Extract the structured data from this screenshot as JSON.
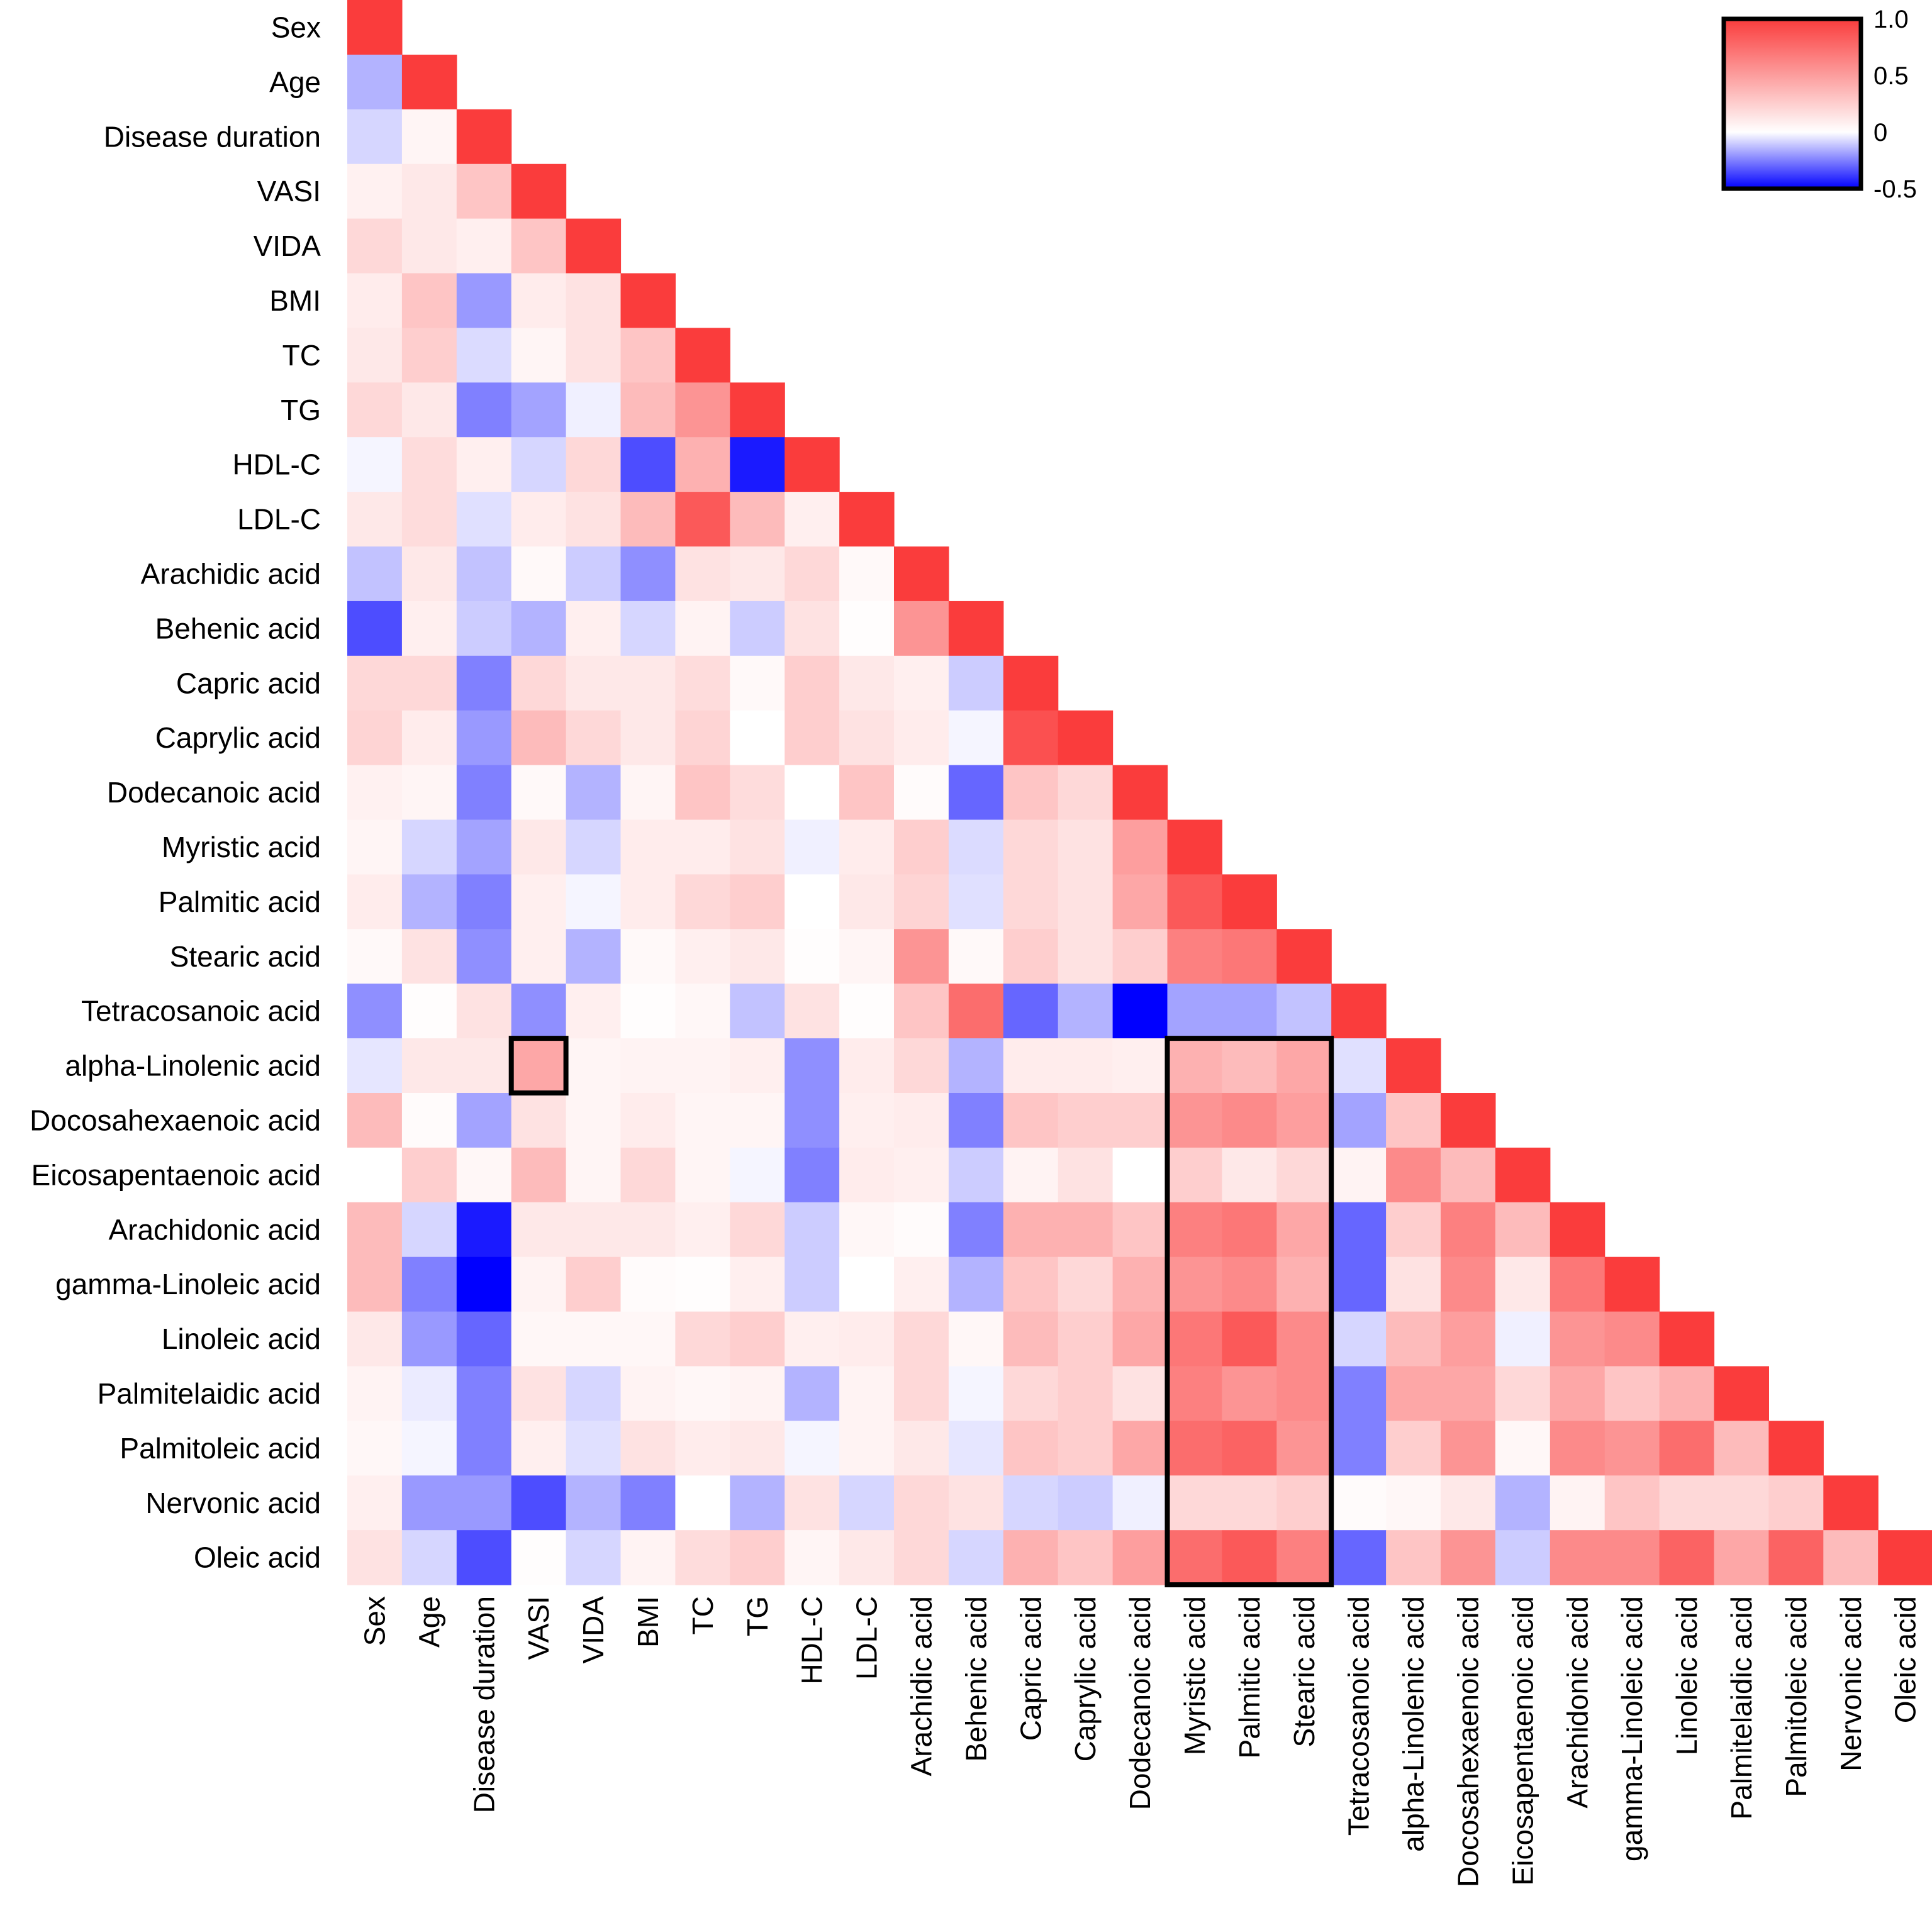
{
  "chart_data": {
    "type": "heatmap",
    "title": "",
    "variables": [
      "Sex",
      "Age",
      "Disease duration",
      "VASI",
      "VIDA",
      "BMI",
      "TC",
      "TG",
      "HDL-C",
      "LDL-C",
      "Arachidic acid",
      "Behenic acid",
      "Capric acid",
      "Caprylic acid",
      "Dodecanoic acid",
      "Myristic acid",
      "Palmitic acid",
      "Stearic acid",
      "Tetracosanoic acid",
      "alpha-Linolenic acid",
      "Docosahexaenoic acid",
      "Eicosapentaenoic acid",
      "Arachidonic acid",
      "gamma-Linoleic acid",
      "Linoleic acid",
      "Palmitelaidic acid",
      "Palmitoleic acid",
      "Nervonic acid",
      "Oleic acid"
    ],
    "y_labels": [
      "Sex",
      "Age",
      "Disease duration ",
      "VASI",
      "VIDA",
      "BMI",
      "TC",
      "TG",
      "HDL-C",
      "LDL-C",
      "Arachidic acid",
      "Behenic acid",
      "Capric acid",
      "Caprylic acid",
      "Dodecanoic acid",
      "Myristic acid",
      "Palmitic acid",
      "Stearic acid",
      "Tetracosanoic acid",
      "alpha-Linolenic acid",
      "Docosahexaenoic acid",
      "Eicosapentaenoic acid",
      "Arachidonic acid",
      "gamma-Linoleic acid",
      "Linoleic acid",
      "Palmitelaidic acid",
      "Palmitoleic acid",
      "Nervonic acid",
      "Oleic acid"
    ],
    "matrix_lower": [
      [
        1.0
      ],
      [
        -0.15,
        1.0
      ],
      [
        -0.08,
        0.05,
        1.0
      ],
      [
        0.07,
        0.12,
        0.3,
        1.0
      ],
      [
        0.2,
        0.12,
        0.08,
        0.3,
        1.0
      ],
      [
        0.1,
        0.3,
        -0.2,
        0.1,
        0.15,
        1.0
      ],
      [
        0.12,
        0.25,
        -0.07,
        0.05,
        0.15,
        0.3,
        1.0
      ],
      [
        0.2,
        0.12,
        -0.25,
        -0.18,
        -0.03,
        0.35,
        0.55,
        1.0
      ],
      [
        -0.02,
        0.18,
        0.08,
        -0.08,
        0.2,
        -0.35,
        0.4,
        -0.45,
        1.0
      ],
      [
        0.12,
        0.18,
        -0.06,
        0.1,
        0.15,
        0.35,
        0.85,
        0.35,
        0.08,
        1.0
      ],
      [
        -0.12,
        0.12,
        -0.12,
        0.03,
        -0.1,
        -0.22,
        0.15,
        0.12,
        0.2,
        0.03,
        1.0
      ],
      [
        -0.35,
        0.08,
        -0.1,
        -0.15,
        0.08,
        -0.08,
        0.06,
        -0.1,
        0.15,
        0.01,
        0.55,
        1.0
      ],
      [
        0.2,
        0.2,
        -0.25,
        0.2,
        0.12,
        0.12,
        0.18,
        0.03,
        0.25,
        0.12,
        0.08,
        -0.1,
        1.0
      ],
      [
        0.22,
        0.1,
        -0.2,
        0.35,
        0.2,
        0.12,
        0.22,
        0.0,
        0.25,
        0.15,
        0.1,
        -0.02,
        0.9,
        1.0
      ],
      [
        0.07,
        0.05,
        -0.25,
        0.03,
        -0.15,
        0.05,
        0.3,
        0.18,
        0.0,
        0.3,
        0.02,
        -0.3,
        0.3,
        0.2,
        1.0
      ],
      [
        0.05,
        -0.08,
        -0.18,
        0.12,
        -0.08,
        0.1,
        0.1,
        0.15,
        -0.03,
        0.1,
        0.25,
        -0.07,
        0.2,
        0.15,
        0.5,
        1.0
      ],
      [
        0.1,
        -0.15,
        -0.25,
        0.08,
        -0.02,
        0.1,
        0.2,
        0.25,
        0.0,
        0.12,
        0.22,
        -0.06,
        0.2,
        0.15,
        0.45,
        0.85,
        1.0
      ],
      [
        0.03,
        0.15,
        -0.22,
        0.08,
        -0.15,
        0.03,
        0.08,
        0.12,
        0.01,
        0.05,
        0.55,
        0.03,
        0.25,
        0.15,
        0.25,
        0.65,
        0.7,
        1.0
      ],
      [
        -0.22,
        0.01,
        0.15,
        -0.22,
        0.08,
        0.01,
        0.04,
        -0.12,
        0.15,
        0.01,
        0.3,
        0.75,
        -0.3,
        -0.15,
        -0.6,
        -0.18,
        -0.18,
        -0.12,
        1.0
      ],
      [
        -0.05,
        0.12,
        0.12,
        0.45,
        0.05,
        0.06,
        0.06,
        0.08,
        -0.22,
        0.1,
        0.2,
        -0.15,
        0.1,
        0.1,
        0.08,
        0.4,
        0.35,
        0.45,
        -0.06,
        1.0
      ],
      [
        0.35,
        0.02,
        -0.18,
        0.15,
        0.05,
        0.1,
        0.05,
        0.05,
        -0.22,
        0.08,
        0.1,
        -0.25,
        0.3,
        0.25,
        0.25,
        0.55,
        0.6,
        0.5,
        -0.18,
        0.3,
        1.0
      ],
      [
        0.0,
        0.25,
        0.04,
        0.35,
        0.05,
        0.2,
        0.05,
        -0.02,
        -0.25,
        0.1,
        0.08,
        -0.1,
        0.06,
        0.15,
        0.0,
        0.25,
        0.12,
        0.2,
        0.06,
        0.6,
        0.35,
        1.0
      ],
      [
        0.35,
        -0.08,
        -0.45,
        0.12,
        0.12,
        0.12,
        0.08,
        0.2,
        -0.1,
        0.04,
        0.02,
        -0.25,
        0.4,
        0.4,
        0.3,
        0.65,
        0.7,
        0.45,
        -0.3,
        0.25,
        0.65,
        0.35,
        1.0
      ],
      [
        0.35,
        -0.25,
        -0.5,
        0.06,
        0.25,
        0.02,
        0.01,
        0.08,
        -0.1,
        0.0,
        0.08,
        -0.15,
        0.3,
        0.2,
        0.4,
        0.55,
        0.6,
        0.4,
        -0.3,
        0.15,
        0.6,
        0.12,
        0.7,
        1.0
      ],
      [
        0.12,
        -0.2,
        -0.3,
        0.04,
        0.04,
        0.04,
        0.2,
        0.25,
        0.08,
        0.1,
        0.2,
        0.04,
        0.35,
        0.25,
        0.45,
        0.7,
        0.85,
        0.6,
        -0.08,
        0.35,
        0.5,
        -0.03,
        0.55,
        0.6,
        1.0
      ],
      [
        0.06,
        -0.04,
        -0.25,
        0.15,
        -0.08,
        0.06,
        0.04,
        0.06,
        -0.15,
        0.06,
        0.2,
        -0.02,
        0.2,
        0.25,
        0.15,
        0.65,
        0.55,
        0.6,
        -0.25,
        0.45,
        0.45,
        0.2,
        0.45,
        0.3,
        0.4,
        1.0
      ],
      [
        0.04,
        -0.02,
        -0.25,
        0.08,
        -0.06,
        0.15,
        0.1,
        0.12,
        -0.02,
        0.06,
        0.12,
        -0.05,
        0.3,
        0.25,
        0.45,
        0.75,
        0.8,
        0.55,
        -0.25,
        0.25,
        0.55,
        0.04,
        0.6,
        0.55,
        0.75,
        0.35,
        1.0
      ],
      [
        0.08,
        -0.2,
        -0.2,
        -0.35,
        -0.15,
        -0.25,
        0.0,
        -0.15,
        0.15,
        -0.08,
        0.2,
        0.15,
        -0.08,
        -0.1,
        -0.03,
        0.2,
        0.2,
        0.25,
        0.02,
        0.04,
        0.12,
        -0.15,
        0.06,
        0.3,
        0.2,
        0.2,
        0.25,
        1.0
      ],
      [
        0.15,
        -0.08,
        -0.35,
        0.01,
        -0.08,
        0.06,
        0.18,
        0.25,
        0.05,
        0.12,
        0.2,
        -0.08,
        0.4,
        0.3,
        0.5,
        0.75,
        0.85,
        0.65,
        -0.3,
        0.3,
        0.55,
        -0.1,
        0.6,
        0.6,
        0.8,
        0.45,
        0.8,
        0.35,
        1.0
      ]
    ],
    "colorbar": {
      "min": -0.5,
      "max": 1.0,
      "ticks": [
        "1.0",
        "0.5",
        "0",
        "-0.5"
      ],
      "tick_values": [
        1.0,
        0.5,
        0.0,
        -0.5
      ],
      "low_color": "#0000ff",
      "mid_color": "#ffffff",
      "high_color": "#fa3c3c"
    },
    "highlights": [
      {
        "rows": [
          "alpha-Linolenic acid"
        ],
        "cols": [
          "VASI"
        ]
      },
      {
        "rows": [
          "alpha-Linolenic acid",
          "Oleic acid"
        ],
        "cols": [
          "Myristic acid",
          "Stearic acid"
        ]
      }
    ],
    "xlabel": "",
    "ylabel": ""
  }
}
